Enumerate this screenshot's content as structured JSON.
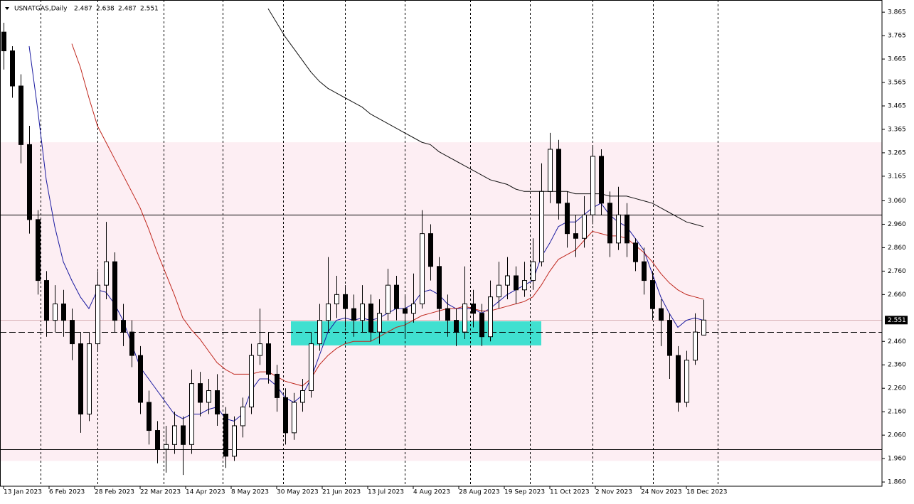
{
  "chart_data": {
    "type": "candlestick",
    "header": {
      "symbol": "USNATGAS,Daily",
      "open": 2.487,
      "high": 2.638,
      "low": 2.487,
      "close": 2.551
    },
    "xlim": [
      -1.25,
      308.75
    ],
    "ylim": [
      1.842,
      3.917
    ],
    "yticks": [
      3.865,
      3.765,
      3.665,
      3.565,
      3.465,
      3.365,
      3.265,
      3.165,
      {
        "value": 3.06,
        "label": "3.060"
      },
      {
        "value": 2.96,
        "label": "2.960"
      },
      {
        "value": 2.86,
        "label": "2.860"
      },
      {
        "value": 2.76,
        "label": "2.760"
      },
      {
        "value": 2.66,
        "label": "2.660"
      },
      {
        "value": 2.46,
        "label": "2.460"
      },
      {
        "value": 2.36,
        "label": "2.360"
      },
      {
        "value": 2.26,
        "label": "2.260"
      },
      {
        "value": 2.16,
        "label": "2.160"
      },
      {
        "value": 2.06,
        "label": "2.060"
      },
      {
        "value": 1.96,
        "label": "1.960"
      },
      {
        "value": 1.86,
        "label": "1.860"
      }
    ],
    "xticks": [
      {
        "value": 0,
        "label": "13 Jan 2023"
      },
      {
        "value": 16,
        "label": "6 Feb 2023"
      },
      {
        "value": 32,
        "label": "28 Feb 2023"
      },
      {
        "value": 48,
        "label": "22 Mar 2023"
      },
      {
        "value": 64,
        "label": "14 Apr 2023"
      },
      {
        "value": 80,
        "label": "8 May 2023"
      },
      {
        "value": 96,
        "label": "30 May 2023"
      },
      {
        "value": 112,
        "label": "21 Jun 2023"
      },
      {
        "value": 128,
        "label": "13 Jul 2023"
      },
      {
        "value": 144,
        "label": "4 Aug 2023"
      },
      {
        "value": 160,
        "label": "28 Aug 2023"
      },
      {
        "value": 176,
        "label": "19 Sep 2023"
      },
      {
        "value": 192,
        "label": "11 Oct 2023"
      },
      {
        "value": 208,
        "label": "2 Nov 2023"
      },
      {
        "value": 224,
        "label": "24 Nov 2023"
      },
      {
        "value": 240,
        "label": "18 Dec 2023"
      }
    ],
    "x": [
      0,
      3,
      6,
      9,
      12,
      15,
      18,
      21,
      24,
      27,
      30,
      33,
      36,
      39,
      42,
      45,
      48,
      51,
      54,
      57,
      60,
      63,
      66,
      69,
      72,
      75,
      78,
      81,
      84,
      87,
      90,
      93,
      96,
      99,
      102,
      105,
      108,
      111,
      114,
      117,
      120,
      123,
      126,
      129,
      132,
      135,
      138,
      141,
      144,
      147,
      150,
      153,
      156,
      159,
      162,
      165,
      168,
      171,
      174,
      177,
      180,
      183,
      186,
      189,
      192,
      195,
      198,
      201,
      204,
      207,
      210,
      213,
      216,
      219,
      222,
      225,
      228,
      231,
      234,
      237,
      240,
      243,
      246
    ],
    "candles": [
      [
        3.78,
        3.82,
        3.62,
        3.7
      ],
      [
        3.7,
        3.72,
        3.5,
        3.55
      ],
      [
        3.55,
        3.6,
        3.22,
        3.3
      ],
      [
        3.3,
        3.38,
        2.92,
        2.98
      ],
      [
        2.98,
        3.02,
        2.66,
        2.72
      ],
      [
        2.72,
        2.76,
        2.48,
        2.55
      ],
      [
        2.55,
        2.7,
        2.5,
        2.62
      ],
      [
        2.62,
        2.68,
        2.48,
        2.55
      ],
      [
        2.55,
        2.6,
        2.38,
        2.45
      ],
      [
        2.45,
        2.5,
        2.07,
        2.15
      ],
      [
        2.15,
        2.5,
        2.12,
        2.45
      ],
      [
        2.45,
        2.76,
        2.42,
        2.7
      ],
      [
        2.7,
        2.97,
        2.64,
        2.8
      ],
      [
        2.8,
        2.84,
        2.5,
        2.55
      ],
      [
        2.55,
        2.62,
        2.44,
        2.5
      ],
      [
        2.5,
        2.55,
        2.35,
        2.4
      ],
      [
        2.4,
        2.44,
        2.15,
        2.2
      ],
      [
        2.2,
        2.25,
        2.02,
        2.08
      ],
      [
        2.08,
        2.12,
        1.94,
        2.0
      ],
      [
        2.0,
        2.1,
        1.9,
        2.02
      ],
      [
        2.02,
        2.16,
        1.98,
        2.1
      ],
      [
        2.1,
        2.14,
        1.89,
        2.02
      ],
      [
        2.02,
        2.34,
        1.98,
        2.28
      ],
      [
        2.28,
        2.33,
        2.14,
        2.2
      ],
      [
        2.2,
        2.3,
        2.15,
        2.25
      ],
      [
        2.25,
        2.32,
        2.1,
        2.15
      ],
      [
        2.15,
        2.18,
        1.92,
        1.97
      ],
      [
        1.97,
        2.14,
        1.95,
        2.1
      ],
      [
        2.1,
        2.22,
        2.05,
        2.18
      ],
      [
        2.18,
        2.45,
        2.15,
        2.4
      ],
      [
        2.4,
        2.6,
        2.36,
        2.45
      ],
      [
        2.45,
        2.5,
        2.28,
        2.32
      ],
      [
        2.32,
        2.36,
        2.16,
        2.22
      ],
      [
        2.22,
        2.26,
        2.02,
        2.07
      ],
      [
        2.07,
        2.24,
        2.04,
        2.2
      ],
      [
        2.2,
        2.3,
        2.16,
        2.25
      ],
      [
        2.25,
        2.5,
        2.22,
        2.45
      ],
      [
        2.45,
        2.62,
        2.42,
        2.55
      ],
      [
        2.55,
        2.82,
        2.5,
        2.62
      ],
      [
        2.62,
        2.74,
        2.56,
        2.66
      ],
      [
        2.66,
        2.7,
        2.52,
        2.6
      ],
      [
        2.6,
        2.66,
        2.48,
        2.55
      ],
      [
        2.55,
        2.7,
        2.5,
        2.62
      ],
      [
        2.62,
        2.66,
        2.46,
        2.5
      ],
      [
        2.5,
        2.64,
        2.45,
        2.58
      ],
      [
        2.58,
        2.77,
        2.55,
        2.7
      ],
      [
        2.7,
        2.74,
        2.55,
        2.6
      ],
      [
        2.6,
        2.66,
        2.47,
        2.58
      ],
      [
        2.58,
        2.75,
        2.54,
        2.62
      ],
      [
        2.62,
        3.02,
        2.6,
        2.92
      ],
      [
        2.92,
        2.96,
        2.72,
        2.78
      ],
      [
        2.78,
        2.82,
        2.55,
        2.6
      ],
      [
        2.6,
        2.66,
        2.48,
        2.55
      ],
      [
        2.55,
        2.6,
        2.44,
        2.5
      ],
      [
        2.5,
        2.78,
        2.47,
        2.62
      ],
      [
        2.62,
        2.68,
        2.52,
        2.58
      ],
      [
        2.58,
        2.62,
        2.44,
        2.48
      ],
      [
        2.48,
        2.72,
        2.46,
        2.65
      ],
      [
        2.65,
        2.8,
        2.6,
        2.7
      ],
      [
        2.7,
        2.82,
        2.64,
        2.74
      ],
      [
        2.74,
        2.78,
        2.62,
        2.68
      ],
      [
        2.68,
        2.8,
        2.65,
        2.72
      ],
      [
        2.72,
        2.9,
        2.68,
        2.8
      ],
      [
        2.8,
        3.22,
        2.78,
        3.1
      ],
      [
        3.1,
        3.35,
        3.05,
        3.28
      ],
      [
        3.28,
        3.32,
        2.98,
        3.05
      ],
      [
        3.05,
        3.1,
        2.86,
        2.92
      ],
      [
        2.92,
        3.0,
        2.82,
        2.9
      ],
      [
        2.9,
        3.08,
        2.86,
        3.0
      ],
      [
        3.0,
        3.29,
        2.96,
        3.25
      ],
      [
        3.25,
        3.28,
        3.0,
        3.05
      ],
      [
        3.05,
        3.1,
        2.82,
        2.88
      ],
      [
        2.88,
        3.12,
        2.85,
        3.0
      ],
      [
        3.0,
        3.05,
        2.82,
        2.88
      ],
      [
        2.88,
        2.9,
        2.76,
        2.8
      ],
      [
        2.8,
        2.86,
        2.66,
        2.72
      ],
      [
        2.72,
        2.76,
        2.55,
        2.6
      ],
      [
        2.6,
        2.64,
        2.44,
        2.55
      ],
      [
        2.55,
        2.58,
        2.3,
        2.4
      ],
      [
        2.4,
        2.44,
        2.16,
        2.2
      ],
      [
        2.2,
        2.42,
        2.18,
        2.38
      ],
      [
        2.38,
        2.58,
        2.36,
        2.5
      ],
      [
        2.487,
        2.638,
        2.487,
        2.551
      ]
    ],
    "up_color": "#ffffff",
    "down_color": "#000000",
    "indicators": [
      {
        "color": "#1a1aa0",
        "values": [
          null,
          null,
          null,
          3.72,
          3.45,
          3.15,
          2.95,
          2.8,
          2.72,
          2.65,
          2.6,
          2.68,
          2.67,
          2.62,
          2.55,
          2.45,
          2.35,
          2.3,
          2.25,
          2.2,
          2.15,
          2.13,
          2.15,
          2.15,
          2.17,
          2.18,
          2.13,
          2.12,
          2.15,
          2.25,
          2.3,
          2.3,
          2.27,
          2.22,
          2.2,
          2.23,
          2.3,
          2.4,
          2.5,
          2.55,
          2.56,
          2.55,
          2.56,
          2.55,
          2.56,
          2.58,
          2.6,
          2.6,
          2.62,
          2.67,
          2.68,
          2.66,
          2.62,
          2.6,
          2.6,
          2.6,
          2.58,
          2.6,
          2.63,
          2.66,
          2.68,
          2.7,
          2.72,
          2.82,
          2.88,
          2.95,
          2.97,
          2.97,
          3.0,
          3.03,
          3.05,
          3.0,
          2.97,
          2.95,
          2.9,
          2.85,
          2.75,
          2.65,
          2.58,
          2.52,
          2.55,
          2.56,
          2.55
        ]
      },
      {
        "color": "#c0281e",
        "values": [
          null,
          null,
          null,
          null,
          null,
          null,
          null,
          null,
          3.73,
          3.63,
          3.5,
          3.38,
          3.31,
          3.24,
          3.17,
          3.1,
          3.03,
          2.94,
          2.84,
          2.75,
          2.66,
          2.56,
          2.51,
          2.47,
          2.42,
          2.37,
          2.34,
          2.32,
          2.32,
          2.32,
          2.33,
          2.33,
          2.31,
          2.29,
          2.28,
          2.27,
          2.3,
          2.36,
          2.4,
          2.43,
          2.45,
          2.46,
          2.46,
          2.46,
          2.48,
          2.5,
          2.52,
          2.53,
          2.55,
          2.57,
          2.58,
          2.59,
          2.6,
          2.6,
          2.61,
          2.6,
          2.59,
          2.59,
          2.6,
          2.61,
          2.62,
          2.63,
          2.65,
          2.7,
          2.76,
          2.81,
          2.83,
          2.85,
          2.89,
          2.93,
          2.92,
          2.91,
          2.91,
          2.9,
          2.87,
          2.84,
          2.8,
          2.75,
          2.71,
          2.68,
          2.66,
          2.65,
          2.64
        ]
      },
      {
        "color": "#111111",
        "values": [
          null,
          null,
          null,
          null,
          null,
          null,
          null,
          null,
          null,
          null,
          null,
          null,
          null,
          null,
          null,
          null,
          null,
          null,
          null,
          null,
          null,
          null,
          null,
          null,
          null,
          null,
          null,
          null,
          null,
          null,
          null,
          3.88,
          3.82,
          3.76,
          3.71,
          3.66,
          3.61,
          3.57,
          3.54,
          3.52,
          3.5,
          3.48,
          3.46,
          3.43,
          3.41,
          3.39,
          3.37,
          3.35,
          3.33,
          3.31,
          3.3,
          3.27,
          3.25,
          3.23,
          3.21,
          3.19,
          3.17,
          3.15,
          3.14,
          3.13,
          3.11,
          3.1,
          3.1,
          3.1,
          3.1,
          3.1,
          3.1,
          3.09,
          3.09,
          3.09,
          3.09,
          3.08,
          3.08,
          3.08,
          3.07,
          3.06,
          3.05,
          3.03,
          3.01,
          2.99,
          2.97,
          2.96,
          2.95
        ]
      }
    ],
    "zone": {
      "ylim": [
        1.95,
        3.31
      ],
      "color": "#fdeef3"
    },
    "box": {
      "x": [
        101,
        189
      ],
      "y": [
        2.443,
        2.546
      ],
      "color": "#40e0d0"
    },
    "hlines": [
      {
        "value": 3.0,
        "style": "solid"
      },
      {
        "value": 2.0,
        "style": "solid"
      },
      {
        "value": 2.5,
        "style": "dashed"
      }
    ]
  }
}
